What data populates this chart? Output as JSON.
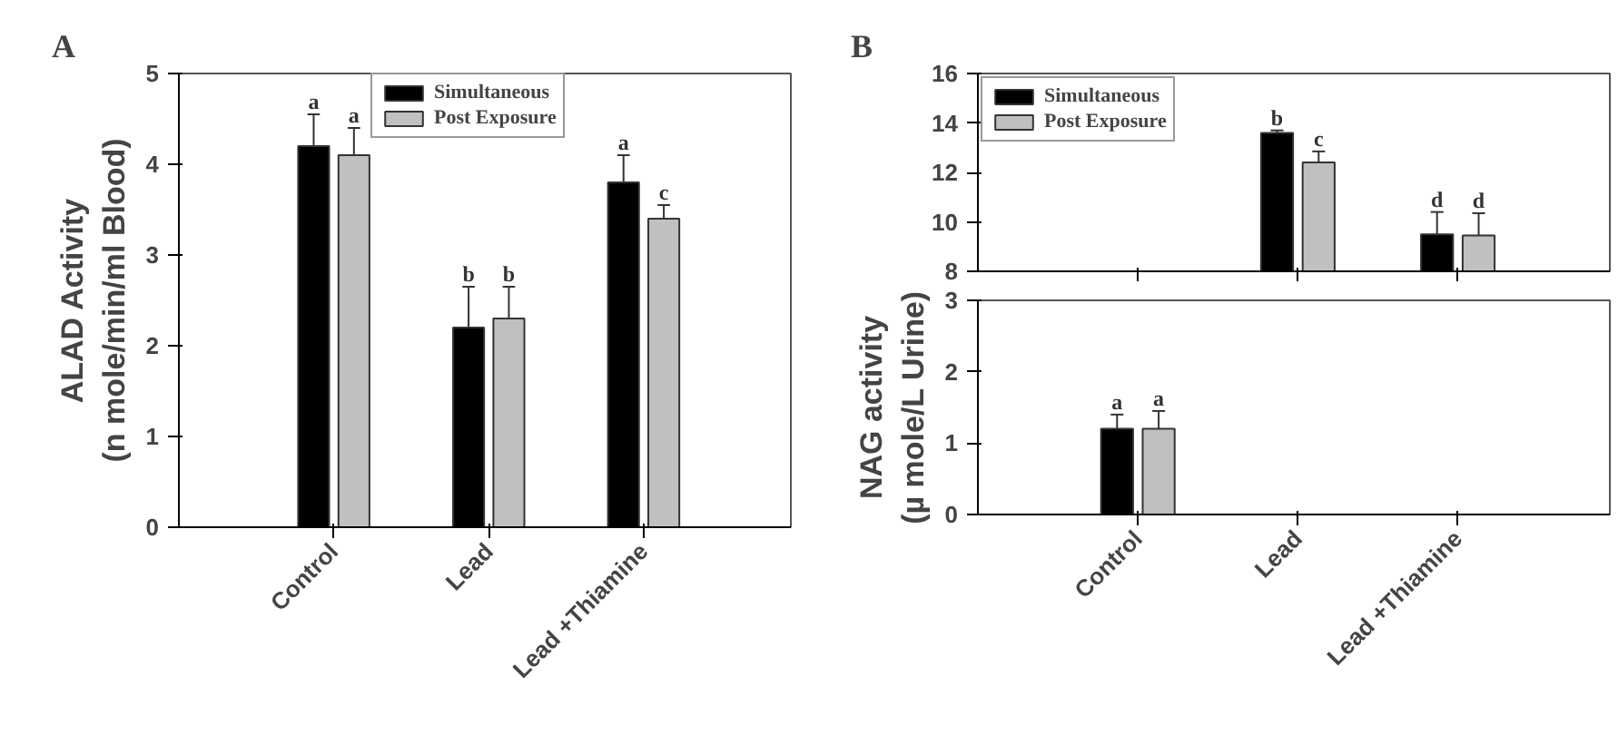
{
  "chart_data": [
    {
      "type": "bar",
      "title": "A",
      "ylabel": "ALAD Activity\n(n mole/min/ml Blood)",
      "categories": [
        "Control",
        "Lead",
        "Lead +Thiamine"
      ],
      "ylim": [
        0,
        5
      ],
      "yticks": [
        0,
        1,
        2,
        3,
        4,
        5
      ],
      "legend": "top",
      "grid": false,
      "series": [
        {
          "name": "Simultaneous",
          "color": "#000000",
          "values": [
            4.2,
            2.2,
            3.8
          ],
          "errors": [
            [
              4.2,
              4.55
            ],
            [
              2.2,
              2.65
            ],
            [
              3.8,
              4.1
            ]
          ],
          "value_labels": [
            "a",
            "b",
            "a"
          ]
        },
        {
          "name": "Post Exposure",
          "color": "#c0c0c0",
          "values": [
            4.1,
            2.3,
            3.4
          ],
          "errors": [
            [
              4.1,
              4.4
            ],
            [
              2.3,
              2.65
            ],
            [
              3.4,
              3.55
            ]
          ],
          "value_labels": [
            "a",
            "b",
            "c"
          ]
        }
      ]
    },
    {
      "type": "bar",
      "title": "B",
      "ylim": [
        8,
        16
      ],
      "yticks": [
        8,
        10,
        12,
        14,
        16
      ],
      "legend": "top left",
      "grid": false,
      "tick_labels": "y",
      "series": [
        {
          "name": "Simultaneous",
          "color": "#000000",
          "values": [
            null,
            13.6,
            9.5
          ],
          "errors": [
            null,
            [
              13.6,
              13.7
            ],
            [
              9.5,
              10.4
            ]
          ],
          "value_labels": [
            null,
            "b",
            "d"
          ]
        },
        {
          "name": "Post Exposure",
          "color": "#c0c0c0",
          "values": [
            null,
            12.4,
            9.45
          ],
          "errors": [
            null,
            [
              12.4,
              12.85
            ],
            [
              9.45,
              10.35
            ]
          ],
          "value_labels": [
            null,
            "c",
            "d"
          ]
        }
      ]
    },
    {
      "type": "bar",
      "ylabel": "NAG activity\n(µ mole/L Urine)",
      "categories": [
        "Control",
        "Lead",
        "Lead +Thiamine"
      ],
      "ylim": [
        0,
        3
      ],
      "yticks": [
        0,
        1,
        2,
        3
      ],
      "grid": false,
      "series": [
        {
          "color": "#000000",
          "values": [
            1.2,
            null,
            null
          ],
          "errors": [
            [
              1.2,
              1.4
            ],
            null,
            null
          ],
          "value_labels": [
            "a",
            null,
            null
          ]
        },
        {
          "color": "#c0c0c0",
          "values": [
            1.2,
            null,
            null
          ],
          "errors": [
            [
              1.2,
              1.45
            ],
            null,
            null
          ],
          "value_labels": [
            "a",
            null,
            null
          ]
        }
      ]
    }
  ]
}
